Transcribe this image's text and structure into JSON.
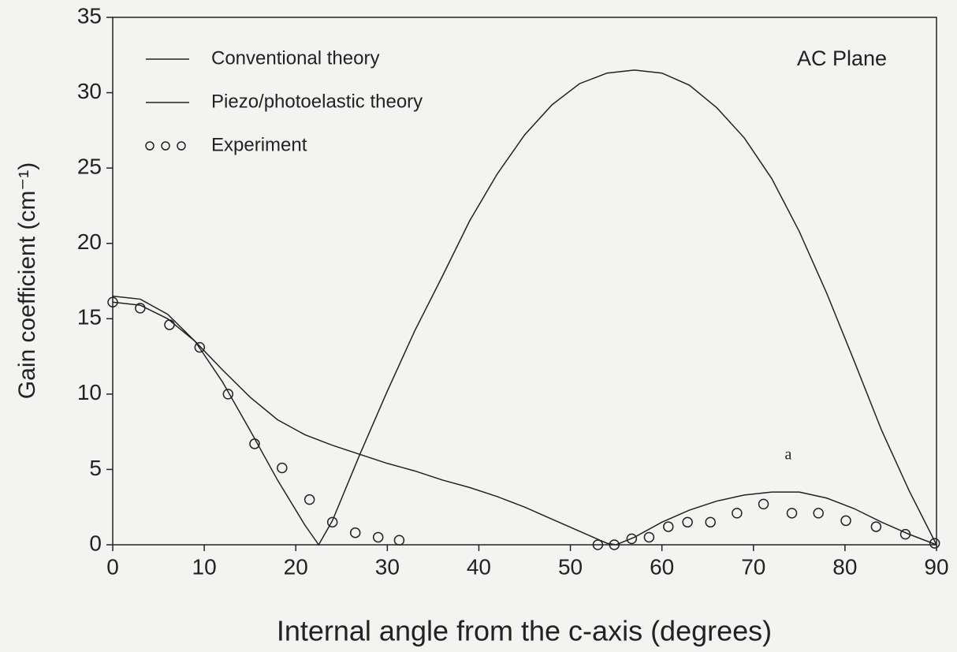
{
  "chart_data": {
    "type": "line",
    "annotations": [
      "AC Plane",
      "a"
    ],
    "xlabel": "Internal angle from the c-axis (degrees)",
    "ylabel": "Gain coefficient (cm⁻¹)",
    "xlim": [
      0,
      90
    ],
    "ylim": [
      0,
      35
    ],
    "xticks": [
      0,
      10,
      20,
      30,
      40,
      50,
      60,
      70,
      80,
      90
    ],
    "yticks": [
      0,
      5,
      10,
      15,
      20,
      25,
      30,
      35
    ],
    "series": [
      {
        "name": "Conventional theory",
        "type": "line",
        "color": "#222222",
        "x": [
          0,
          3,
          6,
          9,
          12,
          15,
          18,
          21,
          22.5,
          24,
          27,
          30,
          33,
          36,
          39,
          42,
          45,
          48,
          51,
          54,
          57,
          60,
          63,
          66,
          69,
          72,
          75,
          78,
          81,
          84,
          87,
          90
        ],
        "values": [
          16.5,
          16.3,
          15.3,
          13.5,
          10.8,
          7.6,
          4.3,
          1.3,
          0,
          1.6,
          6.0,
          10.2,
          14.2,
          17.8,
          21.5,
          24.6,
          27.2,
          29.2,
          30.6,
          31.3,
          31.5,
          31.3,
          30.5,
          29.0,
          27.0,
          24.3,
          20.8,
          16.7,
          12.2,
          7.6,
          3.6,
          0
        ]
      },
      {
        "name": "Piezo/photoelastic theory",
        "type": "line",
        "color": "#222222",
        "x": [
          0,
          3,
          6,
          9,
          12,
          15,
          18,
          21,
          24,
          27,
          30,
          33,
          36,
          39,
          42,
          45,
          48,
          51,
          54,
          55,
          57,
          60,
          63,
          66,
          69,
          72,
          75,
          78,
          81,
          84,
          87,
          90
        ],
        "values": [
          16.1,
          15.9,
          15.0,
          13.5,
          11.6,
          9.8,
          8.3,
          7.3,
          6.6,
          6.0,
          5.4,
          4.9,
          4.3,
          3.8,
          3.2,
          2.5,
          1.7,
          0.9,
          0.1,
          0,
          0.5,
          1.5,
          2.3,
          2.9,
          3.3,
          3.5,
          3.5,
          3.1,
          2.4,
          1.5,
          0.7,
          0
        ]
      },
      {
        "name": "Experiment",
        "type": "scatter",
        "color": "#222222",
        "x": [
          0,
          3,
          6.2,
          9.5,
          12.6,
          15.5,
          18.5,
          21.5,
          24,
          26.5,
          29,
          31.3,
          53,
          54.8,
          56.7,
          58.6,
          60.7,
          62.8,
          65.3,
          68.2,
          71.1,
          74.2,
          77.1,
          80.1,
          83.4,
          86.6,
          89.8
        ],
        "values": [
          16.1,
          15.7,
          14.6,
          13.1,
          10,
          6.7,
          5.1,
          3,
          1.5,
          0.8,
          0.5,
          0.3,
          0,
          0,
          0.4,
          0.5,
          1.2,
          1.5,
          1.5,
          2.1,
          2.7,
          2.1,
          2.1,
          1.6,
          1.2,
          0.7,
          0.1
        ]
      }
    ]
  }
}
